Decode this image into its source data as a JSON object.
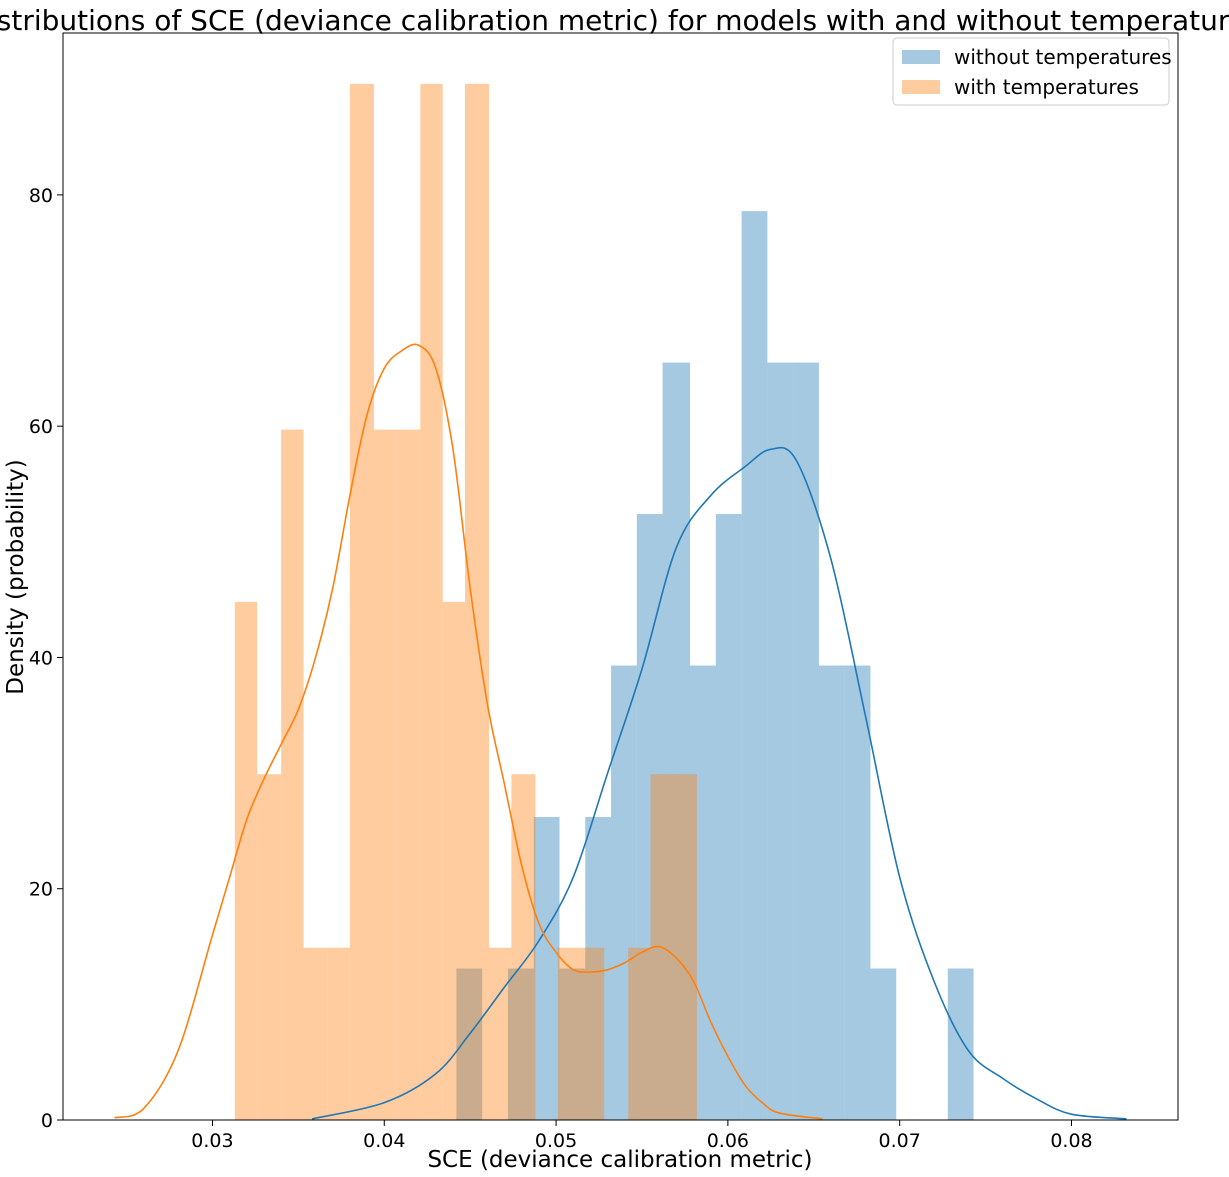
{
  "chart_data": {
    "type": "bar",
    "subtype": "histogram_with_kde",
    "title": "Distributions of SCE (deviance calibration metric) for models with and without temperatures",
    "xlabel": "SCE (deviance calibration metric)",
    "ylabel": "Density (probability)",
    "xlim": [
      0.0213,
      0.0862
    ],
    "ylim": [
      0,
      94
    ],
    "xticks": [
      0.03,
      0.04,
      0.05,
      0.06,
      0.07,
      0.08
    ],
    "xtick_labels": [
      "0.03",
      "0.04",
      "0.05",
      "0.06",
      "0.07",
      "0.08"
    ],
    "yticks": [
      0,
      20,
      40,
      60,
      80
    ],
    "ytick_labels": [
      "0",
      "20",
      "40",
      "60",
      "80"
    ],
    "grid": false,
    "legend_position": "top-right",
    "series": [
      {
        "name": "without temperatures",
        "color": "#1f77b4",
        "bar_alpha": 0.4,
        "bins": [
          {
            "x0": 0.0442,
            "x1": 0.0457,
            "density": 13.1
          },
          {
            "x0": 0.0457,
            "x1": 0.0472,
            "density": 0
          },
          {
            "x0": 0.0472,
            "x1": 0.0487,
            "density": 13.1
          },
          {
            "x0": 0.0487,
            "x1": 0.0502,
            "density": 26.2
          },
          {
            "x0": 0.0502,
            "x1": 0.0517,
            "density": 13.1
          },
          {
            "x0": 0.0517,
            "x1": 0.0532,
            "density": 26.2
          },
          {
            "x0": 0.0532,
            "x1": 0.0547,
            "density": 39.3
          },
          {
            "x0": 0.0547,
            "x1": 0.0562,
            "density": 52.4
          },
          {
            "x0": 0.0562,
            "x1": 0.0578,
            "density": 65.5
          },
          {
            "x0": 0.0578,
            "x1": 0.0593,
            "density": 39.3
          },
          {
            "x0": 0.0593,
            "x1": 0.0608,
            "density": 52.4
          },
          {
            "x0": 0.0608,
            "x1": 0.0623,
            "density": 78.6
          },
          {
            "x0": 0.0623,
            "x1": 0.0638,
            "density": 65.5
          },
          {
            "x0": 0.0638,
            "x1": 0.0653,
            "density": 65.5
          },
          {
            "x0": 0.0653,
            "x1": 0.0668,
            "density": 39.3
          },
          {
            "x0": 0.0668,
            "x1": 0.0683,
            "density": 39.3
          },
          {
            "x0": 0.0683,
            "x1": 0.0698,
            "density": 13.1
          },
          {
            "x0": 0.0698,
            "x1": 0.0713,
            "density": 0
          },
          {
            "x0": 0.0713,
            "x1": 0.0728,
            "density": 0
          },
          {
            "x0": 0.0728,
            "x1": 0.0743,
            "density": 13.1
          }
        ],
        "kde": {
          "x": [
            0.0358,
            0.04,
            0.043,
            0.045,
            0.047,
            0.049,
            0.051,
            0.053,
            0.055,
            0.057,
            0.059,
            0.061,
            0.0625,
            0.064,
            0.066,
            0.068,
            0.07,
            0.072,
            0.074,
            0.076,
            0.078,
            0.08,
            0.0832
          ],
          "y": [
            0.1,
            1.5,
            4.0,
            7.5,
            11.5,
            15.5,
            21.0,
            30.0,
            39.0,
            49.5,
            54.0,
            56.5,
            58.0,
            57.0,
            48.5,
            35.0,
            21.0,
            12.0,
            6.0,
            3.6,
            1.8,
            0.5,
            0.1
          ]
        }
      },
      {
        "name": "with temperatures",
        "color": "#ff7f0e",
        "bar_alpha": 0.4,
        "bins": [
          {
            "x0": 0.0313,
            "x1": 0.0326,
            "density": 44.8
          },
          {
            "x0": 0.0326,
            "x1": 0.034,
            "density": 29.9
          },
          {
            "x0": 0.034,
            "x1": 0.0353,
            "density": 59.7
          },
          {
            "x0": 0.0353,
            "x1": 0.0367,
            "density": 14.9
          },
          {
            "x0": 0.0367,
            "x1": 0.038,
            "density": 14.9
          },
          {
            "x0": 0.038,
            "x1": 0.0394,
            "density": 89.6
          },
          {
            "x0": 0.0394,
            "x1": 0.0407,
            "density": 59.7
          },
          {
            "x0": 0.0407,
            "x1": 0.0421,
            "density": 59.7
          },
          {
            "x0": 0.0421,
            "x1": 0.0434,
            "density": 89.6
          },
          {
            "x0": 0.0434,
            "x1": 0.0447,
            "density": 44.8
          },
          {
            "x0": 0.0447,
            "x1": 0.0461,
            "density": 89.6
          },
          {
            "x0": 0.0461,
            "x1": 0.0474,
            "density": 14.9
          },
          {
            "x0": 0.0474,
            "x1": 0.0488,
            "density": 29.9
          },
          {
            "x0": 0.0488,
            "x1": 0.0501,
            "density": 0
          },
          {
            "x0": 0.0501,
            "x1": 0.0515,
            "density": 14.9
          },
          {
            "x0": 0.0515,
            "x1": 0.0528,
            "density": 14.9
          },
          {
            "x0": 0.0528,
            "x1": 0.0542,
            "density": 0
          },
          {
            "x0": 0.0542,
            "x1": 0.0555,
            "density": 14.9
          },
          {
            "x0": 0.0555,
            "x1": 0.0568,
            "density": 29.9
          },
          {
            "x0": 0.0568,
            "x1": 0.0582,
            "density": 29.9
          }
        ],
        "kde": {
          "x": [
            0.0243,
            0.026,
            0.028,
            0.03,
            0.031,
            0.032,
            0.033,
            0.034,
            0.035,
            0.036,
            0.037,
            0.038,
            0.039,
            0.04,
            0.041,
            0.042,
            0.043,
            0.044,
            0.045,
            0.046,
            0.047,
            0.048,
            0.049,
            0.05,
            0.051,
            0.052,
            0.053,
            0.054,
            0.055,
            0.056,
            0.057,
            0.058,
            0.059,
            0.06,
            0.061,
            0.062,
            0.063,
            0.0655
          ],
          "y": [
            0.2,
            1.0,
            6.0,
            16.0,
            21.0,
            26.0,
            29.5,
            32.5,
            35.5,
            40.0,
            46.0,
            54.0,
            61.0,
            65.0,
            66.5,
            67.0,
            65.0,
            58.0,
            46.0,
            36.0,
            29.0,
            22.0,
            17.0,
            14.5,
            13.0,
            12.8,
            13.0,
            13.6,
            14.5,
            15.0,
            14.0,
            12.0,
            8.5,
            5.5,
            3.0,
            1.5,
            0.6,
            0.1
          ]
        }
      }
    ]
  }
}
